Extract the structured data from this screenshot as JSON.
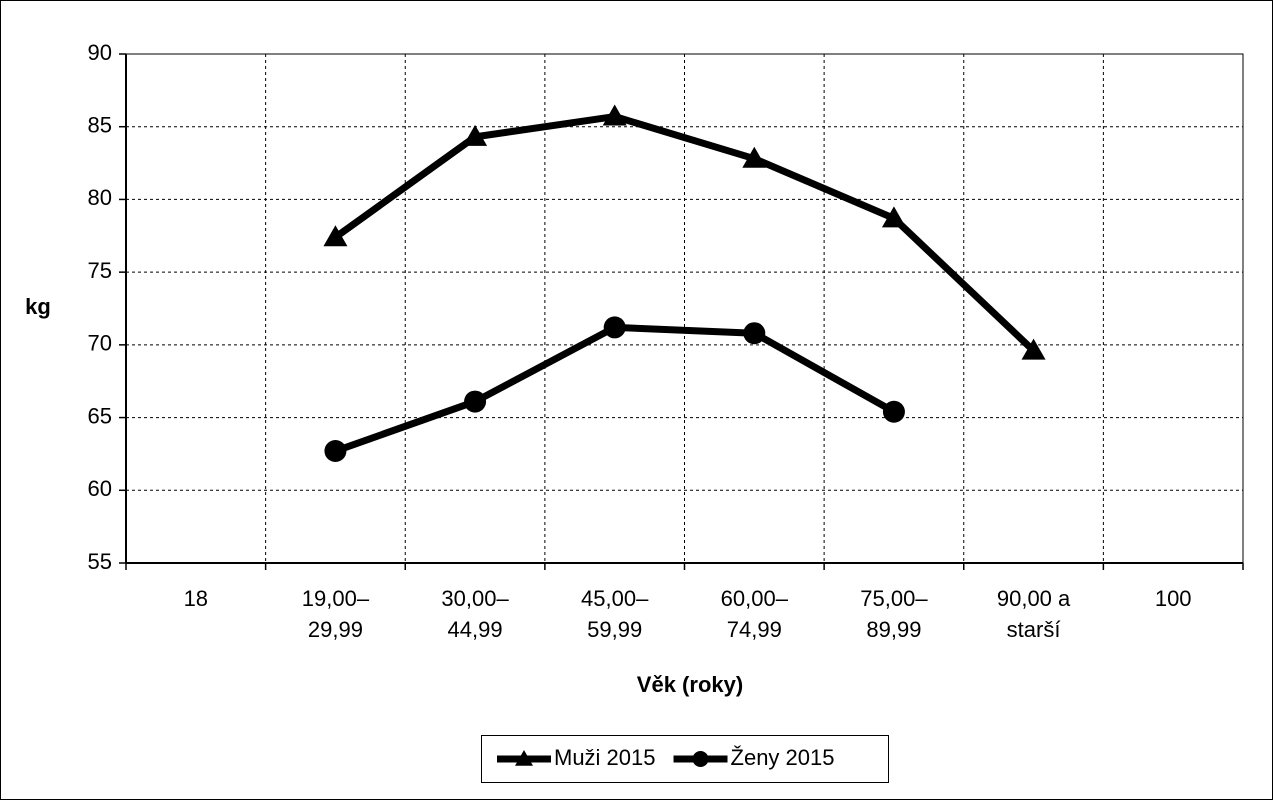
{
  "chart_data": {
    "type": "line",
    "x_label": "Věk (roky)",
    "y_label": "kg",
    "categories": [
      "18",
      "19,00–\n29,99",
      "30,00–\n44,99",
      "45,00–\n59,99",
      "60,00–\n74,99",
      "75,00–\n89,99",
      "90,00 a\nstarší",
      "100"
    ],
    "series": [
      {
        "name": "Muži 2015",
        "color": "#000000",
        "marker": "triangle",
        "values": [
          null,
          77.4,
          84.3,
          85.7,
          82.8,
          78.7,
          69.6,
          null
        ]
      },
      {
        "name": "Ženy 2015",
        "color": "#000000",
        "marker": "circle",
        "values": [
          null,
          62.7,
          66.1,
          71.2,
          70.8,
          65.4,
          null,
          null
        ]
      }
    ],
    "ylim": [
      55,
      90
    ],
    "yticks": [
      55,
      60,
      65,
      70,
      75,
      80,
      85,
      90
    ],
    "grid": true,
    "legend": "bottom"
  }
}
